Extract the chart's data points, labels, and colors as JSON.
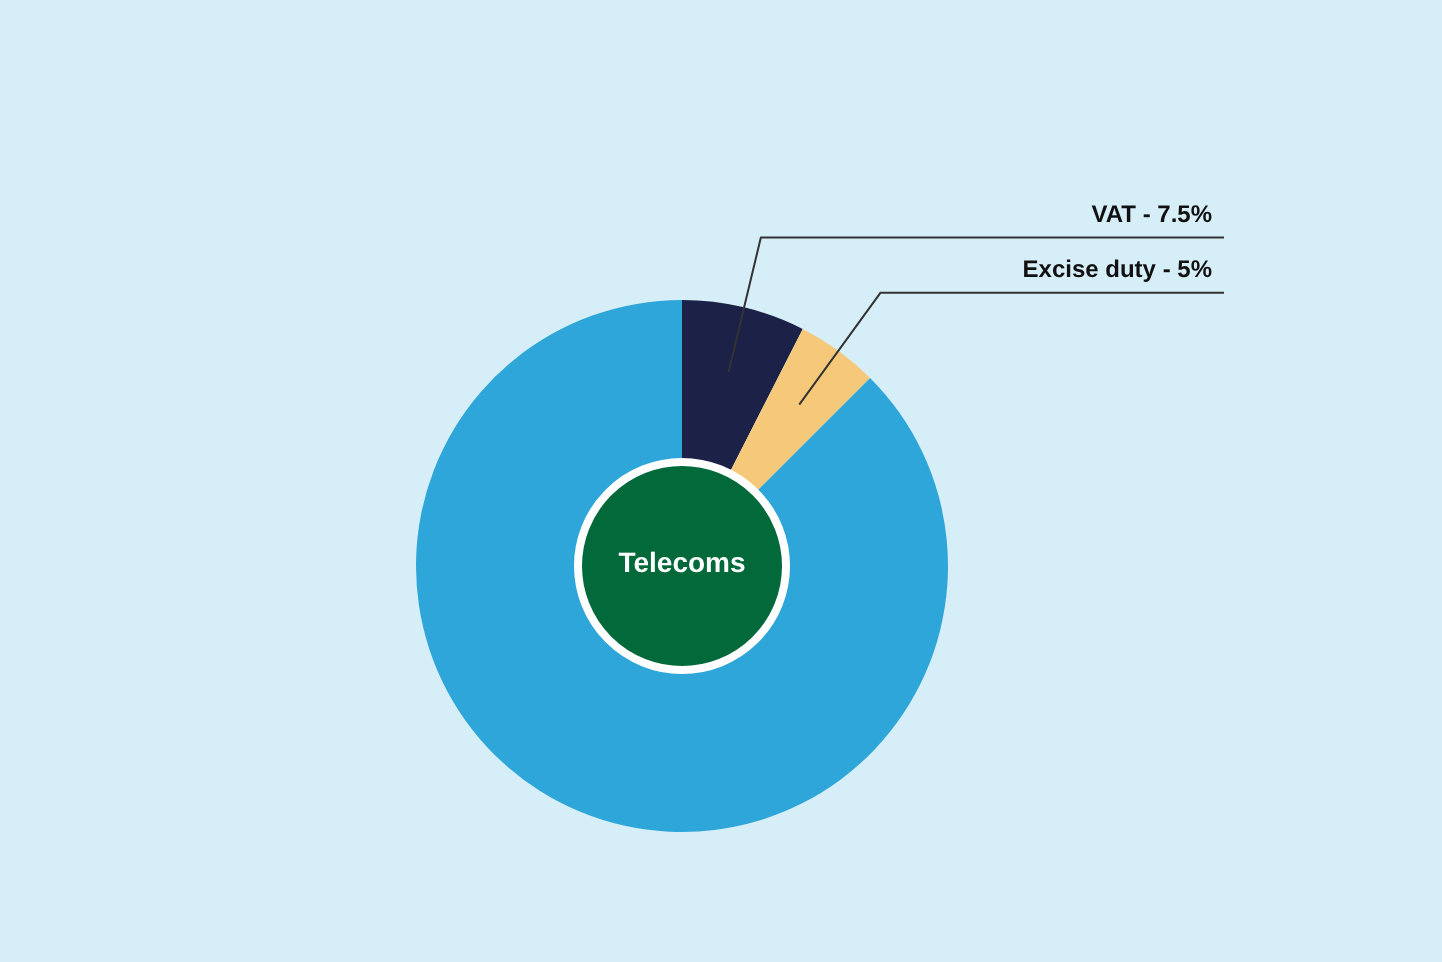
{
  "chart_data": {
    "type": "donut",
    "title": "Telecoms",
    "categories": [
      "VAT - 7.5%",
      "Excise duty - 5%",
      null
    ],
    "values": [
      7.5,
      5,
      87.5
    ],
    "colors": [
      "#1b2147",
      "#f6c97a",
      "#2ea6da"
    ],
    "legend": false
  }
}
